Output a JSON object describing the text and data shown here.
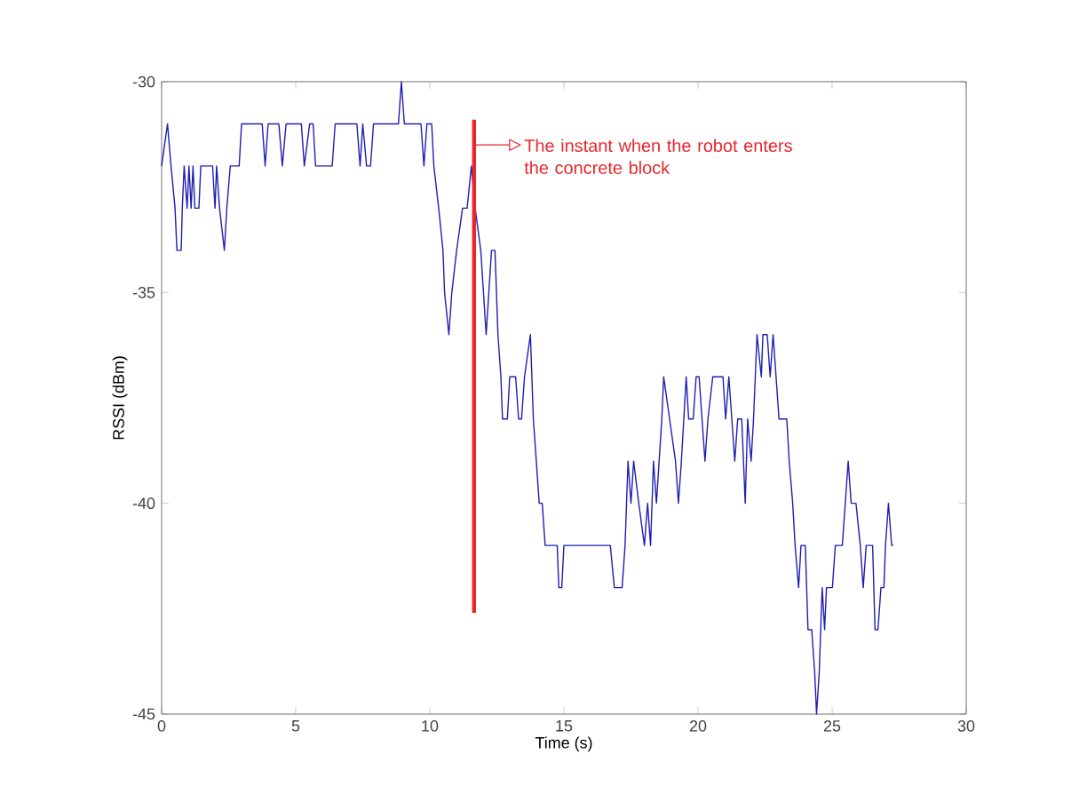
{
  "chart_data": {
    "type": "line",
    "xlabel": "Time (s)",
    "ylabel": "RSSI (dBm)",
    "xlim": [
      0,
      30
    ],
    "ylim": [
      -45,
      -30
    ],
    "xticks": [
      0,
      5,
      10,
      15,
      20,
      25,
      30
    ],
    "yticks": [
      -45,
      -40,
      -35,
      -30
    ],
    "grid": false,
    "marker": "none",
    "line_style": "solid",
    "annotations": [
      {
        "text": "The instant when the robot enters the concrete block",
        "x": 11.65,
        "y": -31.5
      }
    ],
    "series": [
      {
        "color": "#1f1fb0",
        "x": [
          0.0,
          0.22,
          0.35,
          0.5,
          0.57,
          0.73,
          0.77,
          0.84,
          0.95,
          1.02,
          1.1,
          1.17,
          1.24,
          1.39,
          1.46,
          1.9,
          1.99,
          2.05,
          2.16,
          2.34,
          2.43,
          2.56,
          2.89,
          2.98,
          3.75,
          3.86,
          3.97,
          4.37,
          4.5,
          4.64,
          5.21,
          5.32,
          5.52,
          5.65,
          5.74,
          6.36,
          6.47,
          7.28,
          7.4,
          7.5,
          7.64,
          7.79,
          7.9,
          8.83,
          8.94,
          9.05,
          9.67,
          9.78,
          9.89,
          10.07,
          10.15,
          10.33,
          10.49,
          10.55,
          10.71,
          10.82,
          11.0,
          11.22,
          11.39,
          11.55,
          11.69,
          11.9,
          12.0,
          12.1,
          12.2,
          12.3,
          12.43,
          12.54,
          12.65,
          12.71,
          12.89,
          12.98,
          13.2,
          13.31,
          13.42,
          13.53,
          13.75,
          13.86,
          13.97,
          14.08,
          14.19,
          14.3,
          14.75,
          14.81,
          14.92,
          15.0,
          16.73,
          16.88,
          17.17,
          17.28,
          17.39,
          17.5,
          17.6,
          17.79,
          18.0,
          18.12,
          18.23,
          18.34,
          18.45,
          18.55,
          18.65,
          18.72,
          18.94,
          19.16,
          19.27,
          19.38,
          19.56,
          19.65,
          19.82,
          19.93,
          20.04,
          20.15,
          20.26,
          20.37,
          20.55,
          20.93,
          21.03,
          21.15,
          21.26,
          21.37,
          21.48,
          21.63,
          21.76,
          21.85,
          21.98,
          22.07,
          22.2,
          22.36,
          22.42,
          22.58,
          22.69,
          22.8,
          22.91,
          23.02,
          23.31,
          23.4,
          23.53,
          23.62,
          23.75,
          23.84,
          24.0,
          24.1,
          24.24,
          24.35,
          24.42,
          24.52,
          24.63,
          24.72,
          24.79,
          25.01,
          25.12,
          25.38,
          25.49,
          25.6,
          25.71,
          25.89,
          26.05,
          26.16,
          26.27,
          26.51,
          26.6,
          26.71,
          26.82,
          26.93,
          26.99,
          27.1,
          27.22,
          27.28
        ],
        "values": [
          -32,
          -31,
          -32,
          -33,
          -34,
          -34,
          -33,
          -32,
          -33,
          -32,
          -33,
          -32,
          -33,
          -33,
          -32,
          -32,
          -33,
          -32,
          -33,
          -34,
          -33,
          -32,
          -32,
          -31,
          -31,
          -32,
          -31,
          -31,
          -32,
          -31,
          -31,
          -32,
          -31,
          -31,
          -32,
          -32,
          -31,
          -31,
          -32,
          -31,
          -32,
          -32,
          -31,
          -31,
          -30,
          -31,
          -31,
          -32,
          -31,
          -31,
          -32,
          -33,
          -34,
          -35,
          -36,
          -35,
          -34,
          -33,
          -33,
          -32,
          -33,
          -34,
          -35,
          -36,
          -35,
          -34,
          -34,
          -36,
          -37,
          -38,
          -38,
          -37,
          -37,
          -38,
          -38,
          -37,
          -36,
          -38,
          -39,
          -40,
          -40,
          -41,
          -41,
          -42,
          -42,
          -41,
          -41,
          -42,
          -42,
          -41,
          -39,
          -40,
          -39,
          -40,
          -41,
          -40,
          -41,
          -39,
          -40,
          -39,
          -38,
          -37,
          -38,
          -39,
          -40,
          -39,
          -37,
          -38,
          -38,
          -37,
          -37,
          -38,
          -39,
          -38,
          -37,
          -37,
          -38,
          -37,
          -38,
          -39,
          -38,
          -38,
          -40,
          -38,
          -39,
          -38,
          -36,
          -37,
          -36,
          -36,
          -37,
          -36,
          -37,
          -38,
          -38,
          -39,
          -40,
          -41,
          -42,
          -41,
          -41,
          -43,
          -43,
          -44,
          -45,
          -44,
          -42,
          -43,
          -42,
          -42,
          -41,
          -41,
          -40,
          -39,
          -40,
          -40,
          -41,
          -42,
          -41,
          -41,
          -43,
          -43,
          -42,
          -42,
          -41,
          -40,
          -41,
          -41
        ]
      },
      {
        "color": "#e8262b",
        "x": [
          11.65,
          11.65
        ],
        "values": [
          -30.9,
          -42.6
        ]
      }
    ]
  }
}
